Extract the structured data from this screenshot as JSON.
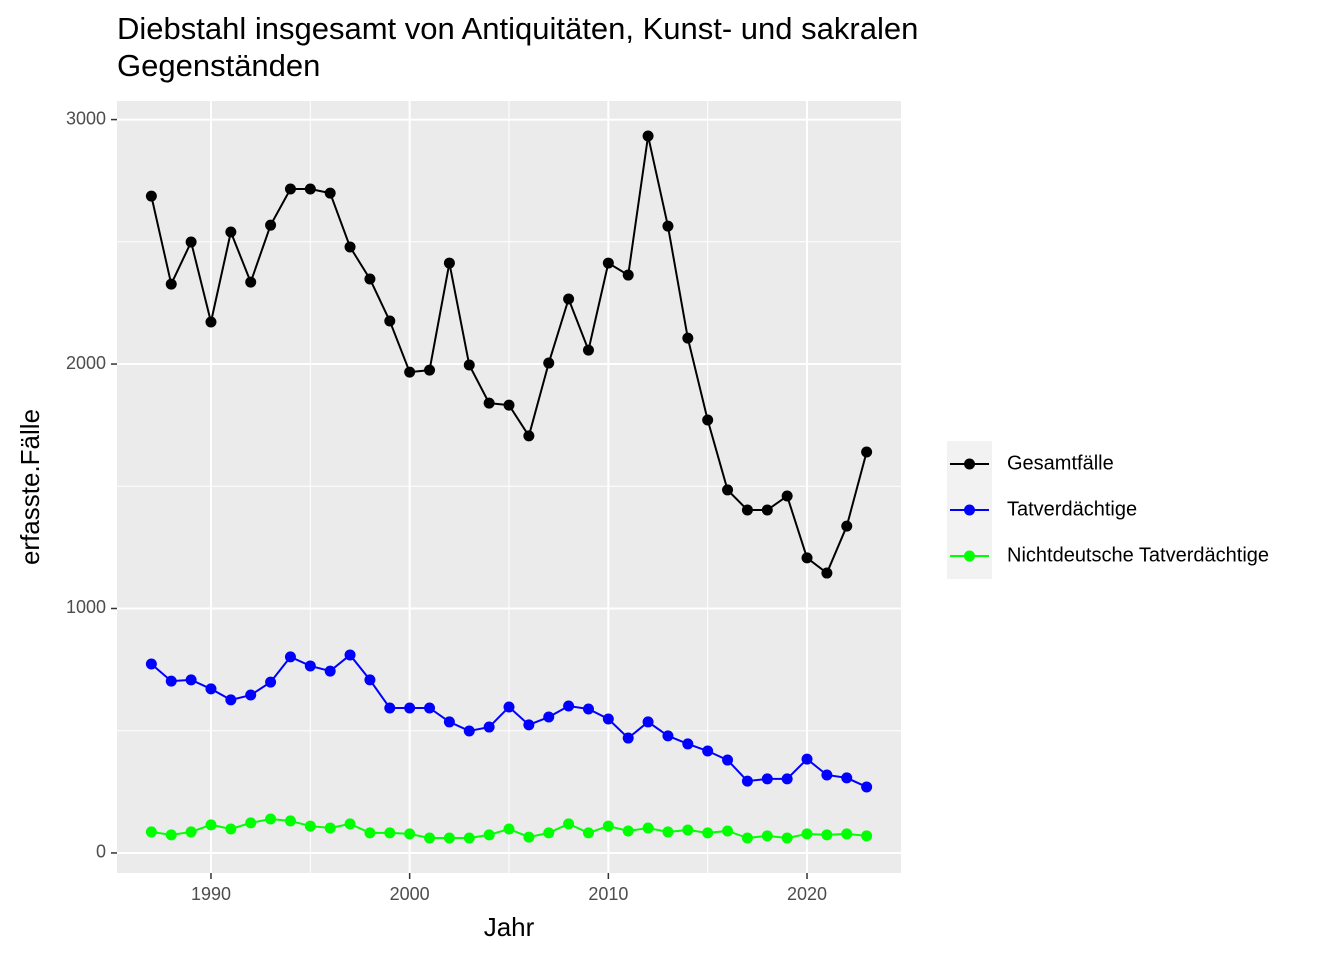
{
  "chart_data": {
    "type": "line",
    "title": [
      "Diebstahl insgesamt von Antiquitäten, Kunst- und sakralen",
      "Gegenständen"
    ],
    "x_label": "Jahr",
    "y_label": "erfasste.Fälle",
    "x": [
      1987,
      1988,
      1989,
      1990,
      1991,
      1992,
      1993,
      1994,
      1995,
      1996,
      1997,
      1998,
      1999,
      2000,
      2001,
      2002,
      2003,
      2004,
      2005,
      2006,
      2007,
      2008,
      2009,
      2010,
      2011,
      2012,
      2013,
      2014,
      2015,
      2016,
      2017,
      2018,
      2019,
      2020,
      2021,
      2022,
      2023
    ],
    "series": [
      {
        "name": "Gesamtfälle",
        "color": "#000000",
        "values": [
          2687,
          2327,
          2499,
          2172,
          2540,
          2335,
          2568,
          2716,
          2716,
          2699,
          2479,
          2348,
          2176,
          1967,
          1975,
          2413,
          1996,
          1840,
          1832,
          1706,
          2004,
          2266,
          2057,
          2413,
          2364,
          2933,
          2564,
          2106,
          1771,
          1485,
          1403,
          1403,
          1460,
          1207,
          1145,
          1337,
          1640
        ]
      },
      {
        "name": "Tatverdächtige",
        "color": "#0000ff",
        "values": [
          773,
          703,
          708,
          671,
          626,
          646,
          699,
          802,
          765,
          744,
          810,
          708,
          593,
          593,
          593,
          536,
          499,
          515,
          597,
          524,
          556,
          601,
          589,
          548,
          470,
          536,
          479,
          446,
          417,
          380,
          294,
          303,
          303,
          384,
          319,
          307,
          270
        ]
      },
      {
        "name": "Nichtdeutsche Tatverdächtige",
        "color": "#00ff00",
        "values": [
          86,
          74,
          86,
          115,
          98,
          123,
          139,
          131,
          110,
          102,
          119,
          82,
          82,
          78,
          61,
          61,
          61,
          74,
          98,
          65,
          82,
          119,
          82,
          110,
          90,
          102,
          86,
          94,
          82,
          90,
          61,
          70,
          61,
          78,
          74,
          78,
          70
        ]
      }
    ],
    "xlim": [
      1985.27,
      2024.73
    ],
    "ylim": [
      -82,
      3076
    ],
    "xticks": [
      1990,
      2000,
      2010,
      2020
    ],
    "yticks": [
      0,
      1000,
      2000,
      3000
    ],
    "minor_xticks": [
      1995,
      2005,
      2015
    ],
    "minor_yticks": [
      500,
      1500,
      2500
    ],
    "grid": true,
    "legend": "right"
  }
}
